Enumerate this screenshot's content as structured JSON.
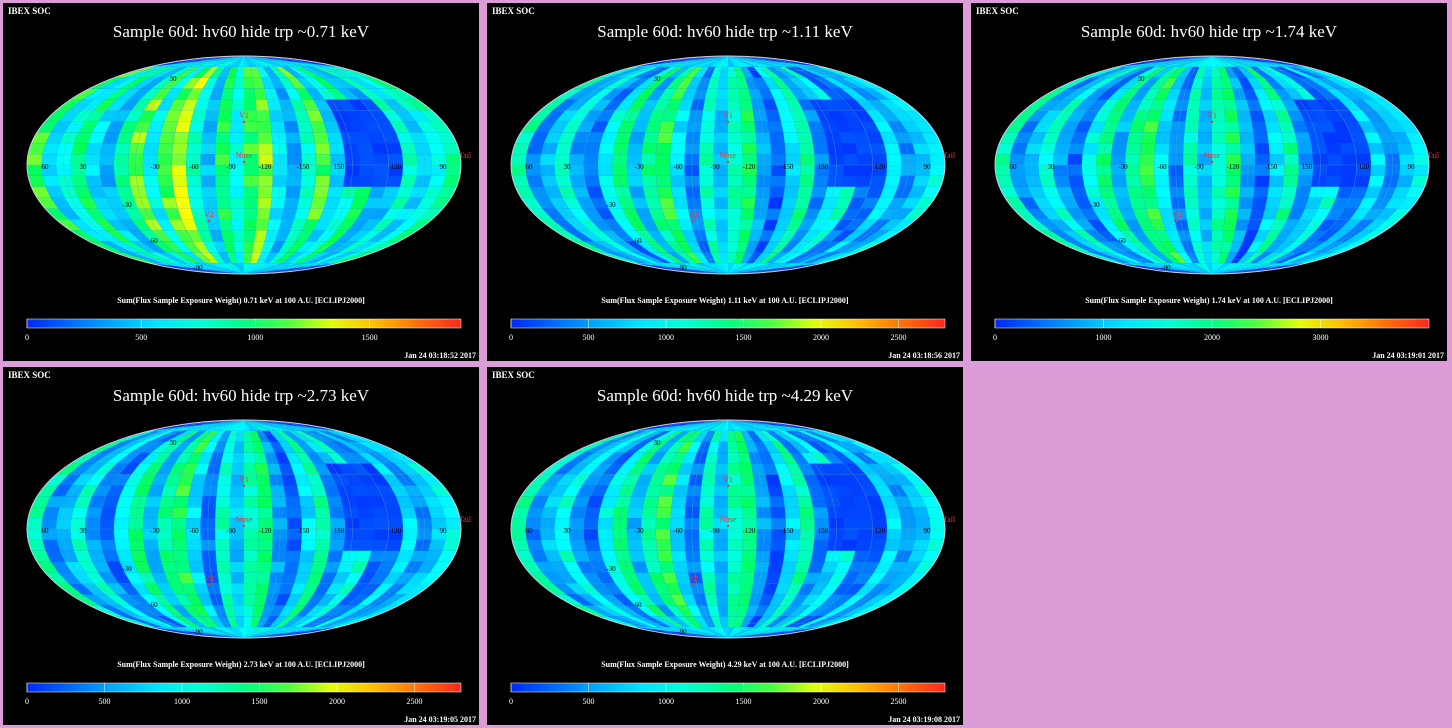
{
  "chart_data": [
    {
      "type": "heatmap",
      "header": "IBEX SOC",
      "title": "Sample 60d: hv60 hide trp ~0.71 keV",
      "colorbar_label": "Sum(Flux Sample Exposure Weight) 0.71 keV at 100 A.U. [ECLIPJ2000]",
      "colorbar_ticks": [
        0,
        500,
        1000,
        1500
      ],
      "colorbar_range": [
        0,
        1900
      ],
      "timestamp": "Jan 24 03:18:52 2017",
      "lon_labels": [
        "60",
        "30",
        "-30",
        "-60",
        "-90",
        "-120",
        "-150",
        "150",
        "120",
        "90"
      ],
      "lat_labels": [
        "30",
        "-30",
        "-60",
        "-90"
      ],
      "markers": [
        "V1",
        "Nose",
        "V2",
        "Tail"
      ]
    },
    {
      "type": "heatmap",
      "header": "IBEX SOC",
      "title": "Sample 60d: hv60 hide trp ~1.11 keV",
      "colorbar_label": "Sum(Flux Sample Exposure Weight) 1.11 keV at 100 A.U. [ECLIPJ2000]",
      "colorbar_ticks": [
        0,
        500,
        1000,
        1500,
        2000,
        2500
      ],
      "colorbar_range": [
        0,
        2800
      ],
      "timestamp": "Jan 24 03:18:56 2017",
      "lon_labels": [
        "60",
        "30",
        "-30",
        "-60",
        "-90",
        "-120",
        "-150",
        "150",
        "120",
        "90"
      ],
      "lat_labels": [
        "30",
        "-30",
        "-60",
        "-90"
      ],
      "markers": [
        "V1",
        "Nose",
        "V2",
        "Tail"
      ]
    },
    {
      "type": "heatmap",
      "header": "IBEX SOC",
      "title": "Sample 60d: hv60 hide trp ~1.74 keV",
      "colorbar_label": "Sum(Flux Sample Exposure Weight) 1.74 keV at 100 A.U. [ECLIPJ2000]",
      "colorbar_ticks": [
        0,
        1000,
        2000,
        3000
      ],
      "colorbar_range": [
        0,
        4000
      ],
      "timestamp": "Jan 24 03:19:01 2017",
      "lon_labels": [
        "60",
        "30",
        "-30",
        "-60",
        "-90",
        "-120",
        "-150",
        "150",
        "120",
        "90"
      ],
      "lat_labels": [
        "30",
        "-30",
        "-60",
        "-90"
      ],
      "markers": [
        "V1",
        "Nose",
        "V2",
        "Tail"
      ]
    },
    {
      "type": "heatmap",
      "header": "IBEX SOC",
      "title": "Sample 60d: hv60 hide trp ~2.73 keV",
      "colorbar_label": "Sum(Flux Sample Exposure Weight) 2.73 keV at 100 A.U. [ECLIPJ2000]",
      "colorbar_ticks": [
        0,
        500,
        1000,
        1500,
        2000,
        2500
      ],
      "colorbar_range": [
        0,
        2800
      ],
      "timestamp": "Jan 24 03:19:05 2017",
      "lon_labels": [
        "60",
        "30",
        "-30",
        "-60",
        "-90",
        "-120",
        "-150",
        "150",
        "120",
        "90"
      ],
      "lat_labels": [
        "30",
        "-30",
        "-60",
        "-90"
      ],
      "markers": [
        "V1",
        "Nose",
        "V2",
        "Tail"
      ]
    },
    {
      "type": "heatmap",
      "header": "IBEX SOC",
      "title": "Sample 60d: hv60 hide trp ~4.29 keV",
      "colorbar_label": "Sum(Flux Sample Exposure Weight) 4.29 keV at 100 A.U. [ECLIPJ2000]",
      "colorbar_ticks": [
        0,
        500,
        1000,
        1500,
        2000,
        2500
      ],
      "colorbar_range": [
        0,
        2800
      ],
      "timestamp": "Jan 24 03:19:08 2017",
      "lon_labels": [
        "60",
        "30",
        "-30",
        "-60",
        "-90",
        "-120",
        "-150",
        "150",
        "120",
        "90"
      ],
      "lat_labels": [
        "30",
        "-30",
        "-60",
        "-90"
      ],
      "markers": [
        "V1",
        "Nose",
        "V2",
        "Tail"
      ]
    }
  ]
}
